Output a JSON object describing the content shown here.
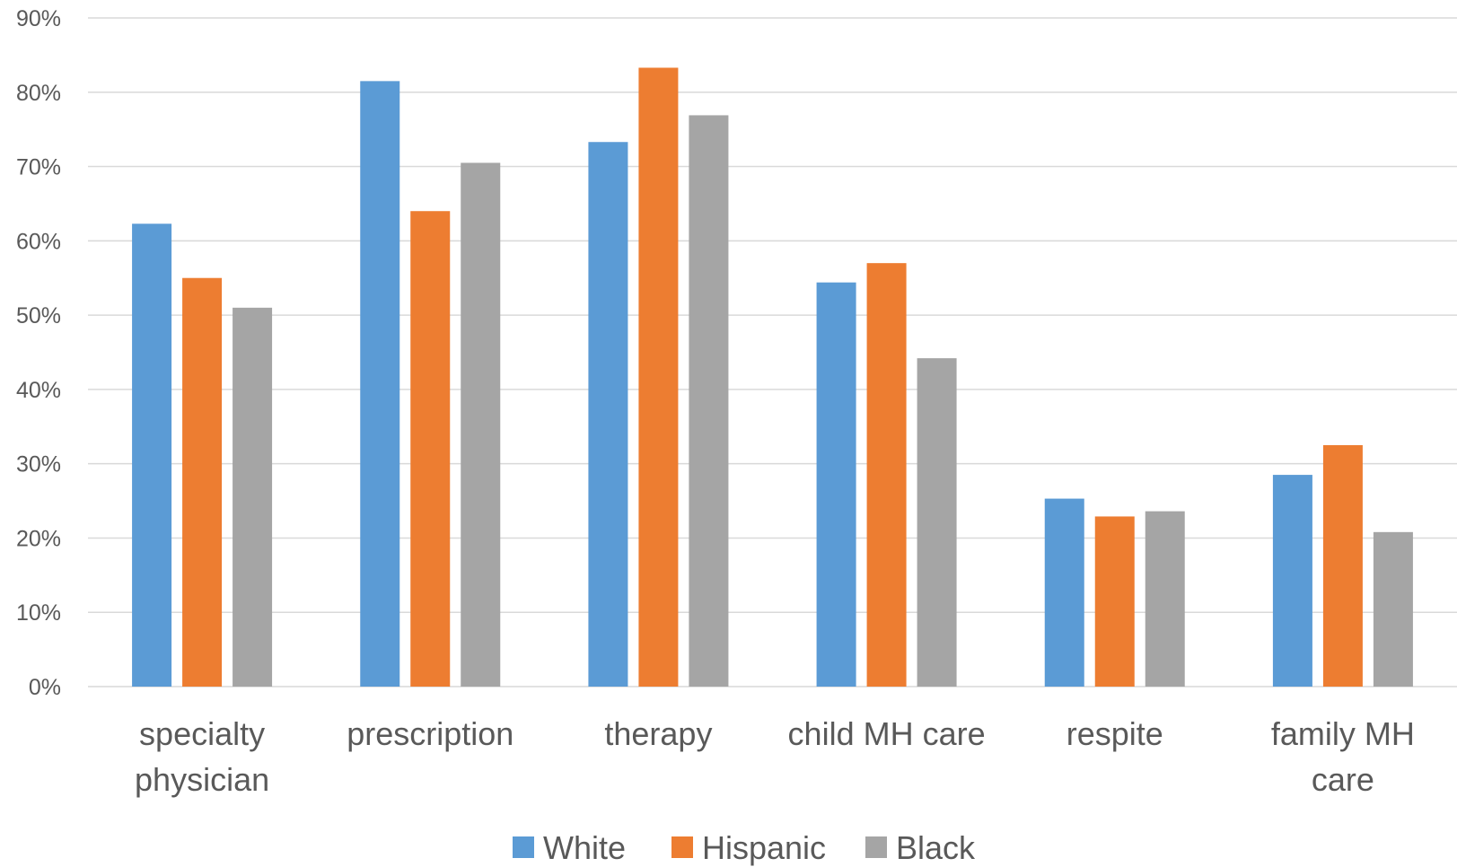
{
  "chart_data": {
    "type": "bar",
    "categories": [
      [
        "specialty",
        "physician"
      ],
      [
        "prescription"
      ],
      [
        "therapy"
      ],
      [
        "child MH care"
      ],
      [
        "respite"
      ],
      [
        "family MH",
        "care"
      ]
    ],
    "series": [
      {
        "name": "White",
        "color": "#5b9bd5",
        "values": [
          62.3,
          81.5,
          73.3,
          54.4,
          25.3,
          28.5
        ]
      },
      {
        "name": "Hispanic",
        "color": "#ed7d31",
        "values": [
          55.0,
          64.0,
          83.3,
          57.0,
          22.9,
          32.5
        ]
      },
      {
        "name": "Black",
        "color": "#a5a5a5",
        "values": [
          51.0,
          70.5,
          76.9,
          44.2,
          23.6,
          20.8
        ]
      }
    ],
    "ylim": [
      0,
      90
    ],
    "yticks": [
      "0%",
      "10%",
      "20%",
      "30%",
      "40%",
      "50%",
      "60%",
      "70%",
      "80%",
      "90%"
    ],
    "grid": true,
    "legend": "bottom",
    "title": "",
    "xlabel": "",
    "ylabel": ""
  }
}
